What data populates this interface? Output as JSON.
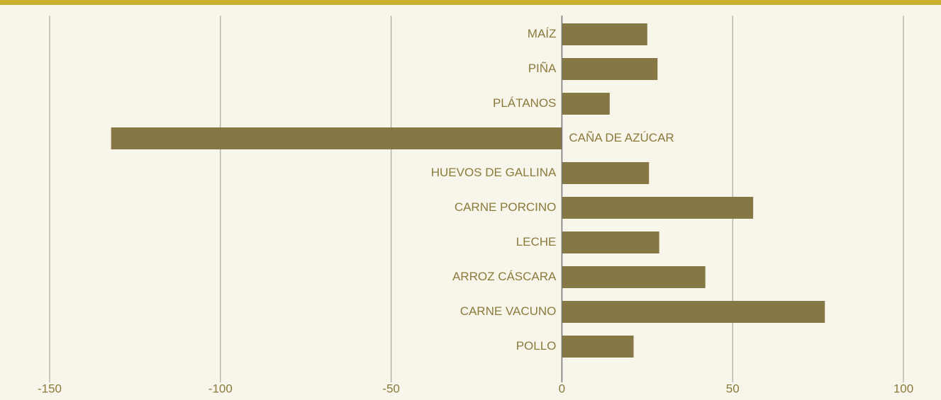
{
  "chart_data": {
    "type": "barh",
    "categories": [
      "MAÍZ",
      "PIÑA",
      "PLÁTANOS",
      "CAÑA DE AZÚCAR",
      "HUEVOS DE GALLINA",
      "CARNE PORCINO",
      "LECHE",
      "ARROZ CÁSCARA",
      "CARNE VACUNO",
      "POLLO"
    ],
    "values": [
      25,
      28,
      14,
      -132,
      25.5,
      56,
      28.5,
      42,
      77,
      21
    ],
    "color": "#857844",
    "xlim": [
      -150,
      100
    ],
    "xticks": [
      -150,
      -100,
      -50,
      0,
      50,
      100
    ],
    "grid": true
  }
}
